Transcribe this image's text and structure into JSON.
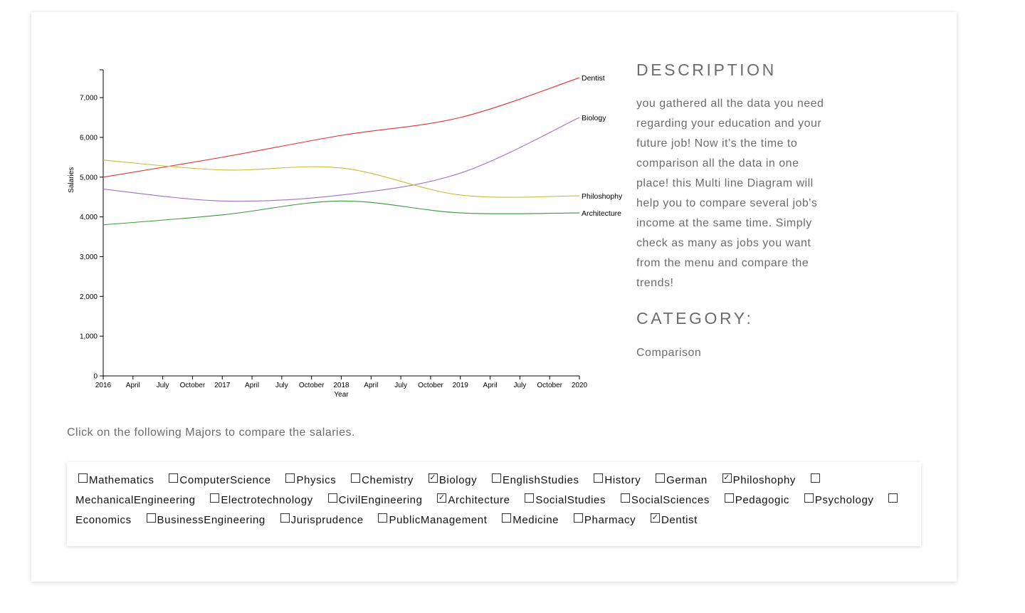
{
  "description": {
    "heading": "DESCRIPTION",
    "text": "you gathered all the data you need regarding your education and your future job! Now it's the time to comparison all the data in one place! this Multi line Diagram will help you to compare several job's income at the same time. Simply check as many as jobs you want from the menu and compare the trends!",
    "category_heading": "CATEGORY:",
    "category_value": "Comparison"
  },
  "instruction": "Click on the following Majors to compare the salaries.",
  "majors": [
    {
      "label": "Mathematics",
      "checked": false
    },
    {
      "label": "ComputerScience",
      "checked": false
    },
    {
      "label": "Physics",
      "checked": false
    },
    {
      "label": "Chemistry",
      "checked": false
    },
    {
      "label": "Biology",
      "checked": true
    },
    {
      "label": "EnglishStudies",
      "checked": false
    },
    {
      "label": "History",
      "checked": false
    },
    {
      "label": "German",
      "checked": false
    },
    {
      "label": "Philoshophy",
      "checked": true
    },
    {
      "label": "MechanicalEngineering",
      "checked": false
    },
    {
      "label": "Electrotechnology",
      "checked": false
    },
    {
      "label": "CivilEngineering",
      "checked": false
    },
    {
      "label": "Architecture",
      "checked": true
    },
    {
      "label": "SocialStudies",
      "checked": false
    },
    {
      "label": "SocialSciences",
      "checked": false
    },
    {
      "label": "Pedagogic",
      "checked": false
    },
    {
      "label": "Psychology",
      "checked": false
    },
    {
      "label": "Economics",
      "checked": false
    },
    {
      "label": "BusinessEngineering",
      "checked": false
    },
    {
      "label": "Jurisprudence",
      "checked": false
    },
    {
      "label": "PublicManagement",
      "checked": false
    },
    {
      "label": "Medicine",
      "checked": false
    },
    {
      "label": "Pharmacy",
      "checked": false
    },
    {
      "label": "Dentist",
      "checked": true
    }
  ],
  "chart_data": {
    "type": "line",
    "xlabel": "Year",
    "ylabel": "Salaries",
    "x": [
      "2016",
      "2017",
      "2018",
      "2019",
      "2020"
    ],
    "x_tick_labels": [
      "2016",
      "April",
      "July",
      "October",
      "2017",
      "April",
      "July",
      "October",
      "2018",
      "April",
      "July",
      "October",
      "2019",
      "April",
      "July",
      "October",
      "2020"
    ],
    "ylim": [
      0,
      7700
    ],
    "y_ticks": [
      0,
      1000,
      2000,
      3000,
      4000,
      5000,
      6000,
      7000
    ],
    "y_tick_labels": [
      "0",
      "1,000",
      "2,000",
      "3,000",
      "4,000",
      "5,000",
      "6,000",
      "7,000"
    ],
    "series": [
      {
        "name": "Dentist",
        "color": "#e0322f",
        "values": [
          5000,
          5500,
          6050,
          6500,
          7500
        ]
      },
      {
        "name": "Biology",
        "color": "#9f6fc7",
        "values": [
          4700,
          4400,
          4550,
          5100,
          6500
        ]
      },
      {
        "name": "Philoshophy",
        "color": "#c9bb3a",
        "values": [
          5430,
          5180,
          5230,
          4550,
          4530
        ]
      },
      {
        "name": "Architecture",
        "color": "#3a9a3a",
        "values": [
          3800,
          4050,
          4400,
          4100,
          4100
        ]
      }
    ],
    "grid": false,
    "legend": "line-end labels"
  }
}
